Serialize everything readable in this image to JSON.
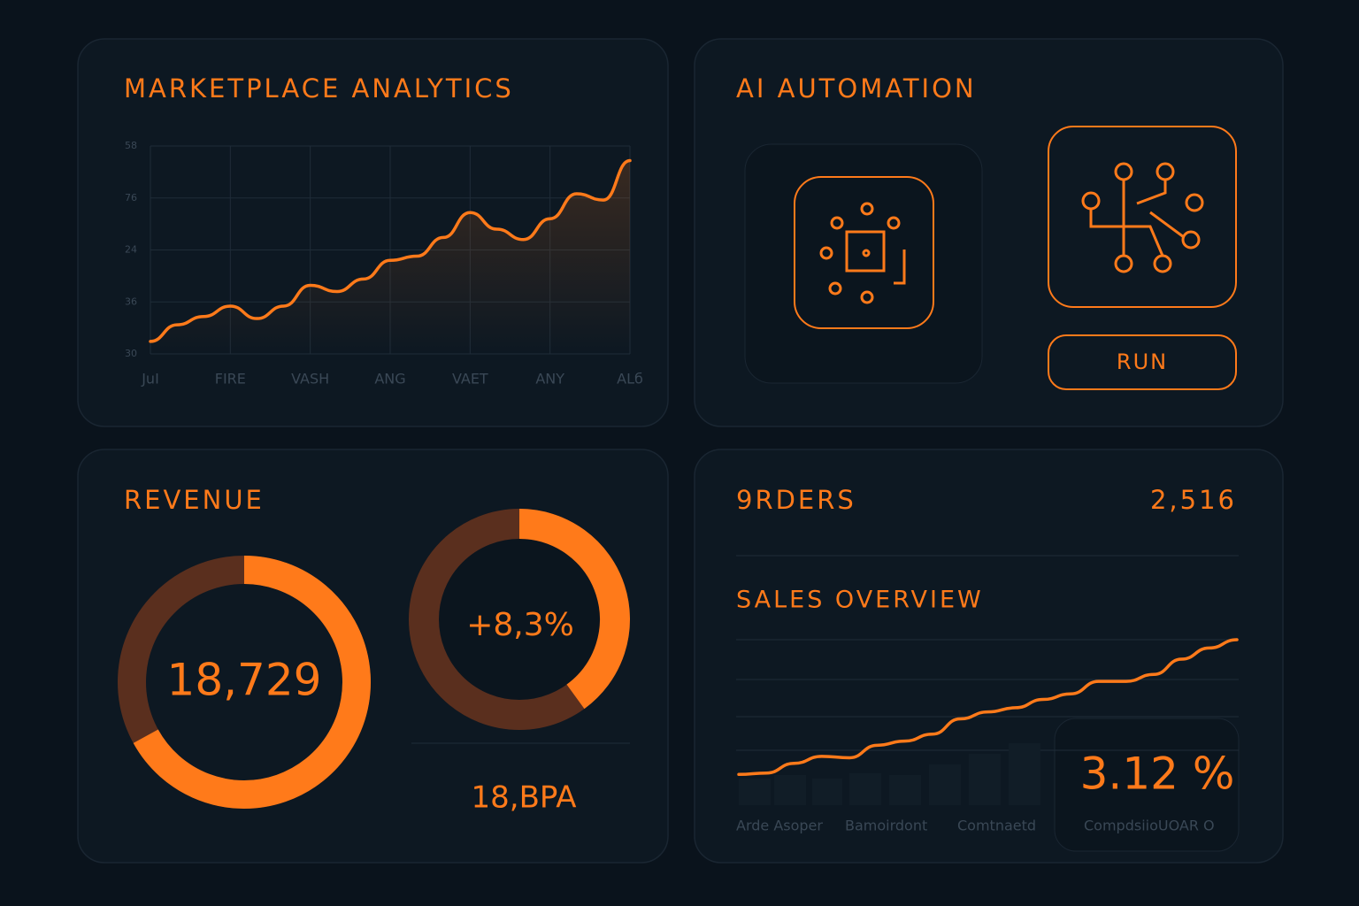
{
  "analytics": {
    "title": "MARKETPLACE ANALYTICS",
    "chart": {
      "type": "line",
      "color": "#ff7a1a",
      "y_labels": [
        "58",
        "76",
        "24",
        "36",
        "30"
      ],
      "categories": [
        "JuI",
        "FIRE",
        "VASH",
        "ANG",
        "VAET",
        "ANY",
        "ALб"
      ],
      "values": [
        6,
        14,
        18,
        23,
        17,
        23,
        33,
        30,
        36,
        45,
        47,
        56,
        68,
        60,
        55,
        65,
        77,
        74,
        93
      ],
      "ylim": [
        0,
        100
      ]
    }
  },
  "automation": {
    "title": "AI AUTOMATION",
    "button": "RUN"
  },
  "revenue": {
    "title": "REVENUE",
    "total": "18,729",
    "total_progress": 67,
    "change": "+8,3%",
    "change_progress": 40,
    "footer": "18,BPA",
    "color": "#ff7a1a",
    "track_color": "#5a2f1e"
  },
  "orders": {
    "title": "9RDERS",
    "count": "2,516",
    "sales": {
      "title": "SALES OVERVIEW",
      "type": "line",
      "color": "#ff7a1a",
      "values": [
        3,
        4,
        11,
        16,
        15,
        24,
        27,
        32,
        43,
        48,
        51,
        57,
        61,
        70,
        70,
        75,
        86,
        94,
        100
      ],
      "ylim": [
        0,
        100
      ]
    },
    "rate": "3.12 %",
    "labels": [
      "Arde Asoper",
      "Bamoirdont",
      "Comtnaetd",
      "CompdsiioUOAR O"
    ]
  }
}
